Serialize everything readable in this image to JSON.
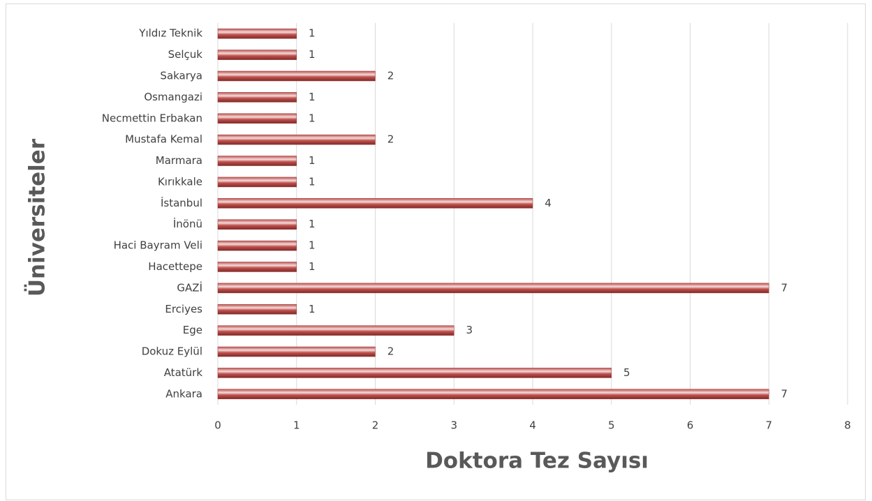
{
  "chart_data": {
    "type": "bar",
    "orientation": "horizontal",
    "x_label": "Doktora Tez Sayısı",
    "y_label": "Üniversiteler",
    "categories": [
      "Ankara",
      "Atatürk",
      "Dokuz Eylül",
      "Ege",
      "Erciyes",
      "GAZİ",
      "Hacettepe",
      "Haci Bayram Veli",
      "İnönü",
      "İstanbul",
      "Kırıkkale",
      "Marmara",
      "Mustafa Kemal",
      "Necmettin Erbakan",
      "Osmangazi",
      "Sakarya",
      "Selçuk",
      "Yıldız Teknik"
    ],
    "values": [
      7,
      5,
      2,
      3,
      1,
      7,
      1,
      1,
      1,
      4,
      1,
      1,
      2,
      1,
      1,
      2,
      1,
      1
    ],
    "color": "#c0504d",
    "xlim": [
      0,
      8
    ],
    "xticks": [
      0,
      1,
      2,
      3,
      4,
      5,
      6,
      7,
      8
    ],
    "grid": true
  }
}
